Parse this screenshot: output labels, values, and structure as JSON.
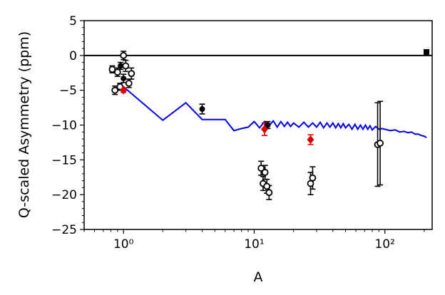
{
  "chart_data": {
    "type": "scatter",
    "title": "",
    "xlabel": "A",
    "ylabel": "Q-scaled Asymmetry (ppm)",
    "x_scale": "log",
    "xlim": [
      0.5,
      230
    ],
    "ylim": [
      -25,
      5
    ],
    "x_ticks": [
      {
        "value": 1,
        "label": "10⁰"
      },
      {
        "value": 10,
        "label": "10¹"
      },
      {
        "value": 100,
        "label": "10²"
      }
    ],
    "y_ticks": [
      {
        "value": 5,
        "label": "5"
      },
      {
        "value": 0,
        "label": "0"
      },
      {
        "value": -5,
        "label": "−5"
      },
      {
        "value": -10,
        "label": "−10"
      },
      {
        "value": -15,
        "label": "−15"
      },
      {
        "value": -20,
        "label": "−20"
      },
      {
        "value": -25,
        "label": "−25"
      }
    ],
    "reference_line": 0,
    "colors": {
      "model": "#0000ee",
      "open": "#000000",
      "filled": "#000000",
      "diamond": "#dd0000"
    },
    "series": [
      {
        "marker": "open-circle",
        "points": [
          {
            "x": 0.82,
            "y": -2.0,
            "err": 0.5
          },
          {
            "x": 0.86,
            "y": -5.0,
            "err": 0.6
          },
          {
            "x": 0.9,
            "y": -2.4,
            "err": 0.6
          },
          {
            "x": 0.94,
            "y": -4.5,
            "err": 0.5
          },
          {
            "x": 1.0,
            "y": 0.0,
            "err": 0.6
          },
          {
            "x": 1.04,
            "y": -1.5,
            "err": 0.8
          },
          {
            "x": 1.1,
            "y": -4.0,
            "err": 0.6
          },
          {
            "x": 1.15,
            "y": -2.6,
            "err": 0.8
          },
          {
            "x": 11.3,
            "y": -16.2,
            "err": 1.0
          },
          {
            "x": 11.7,
            "y": -18.4,
            "err": 1.0
          },
          {
            "x": 12.1,
            "y": -16.8,
            "err": 1.0
          },
          {
            "x": 12.5,
            "y": -18.8,
            "err": 1.0
          },
          {
            "x": 13.0,
            "y": -19.7,
            "err": 1.0
          },
          {
            "x": 27.0,
            "y": -18.4,
            "err": 1.6
          },
          {
            "x": 28.0,
            "y": -17.6,
            "err": 1.6
          },
          {
            "x": 88.0,
            "y": -12.8,
            "err": 6.0
          },
          {
            "x": 92.0,
            "y": -12.6,
            "err": 6.0
          }
        ]
      },
      {
        "marker": "filled-circle",
        "points": [
          {
            "x": 0.95,
            "y": -1.5,
            "err": 0.5
          },
          {
            "x": 1.0,
            "y": -3.3,
            "err": 0.6
          },
          {
            "x": 4.0,
            "y": -7.7,
            "err": 0.7
          },
          {
            "x": 12.7,
            "y": -10.0,
            "err": 0.5
          }
        ]
      },
      {
        "marker": "filled-square",
        "points": [
          {
            "x": 208,
            "y": 0.5,
            "err": 0
          }
        ]
      },
      {
        "marker": "diamond",
        "points": [
          {
            "x": 1.0,
            "y": -5.0,
            "err": 0.3
          },
          {
            "x": 12.0,
            "y": -10.6,
            "err": 0.9
          },
          {
            "x": 27.0,
            "y": -12.1,
            "err": 0.7
          }
        ]
      }
    ],
    "model_line": {
      "x": [
        1,
        2,
        3,
        4,
        6,
        7,
        8,
        9,
        10,
        11,
        12,
        13,
        14,
        15,
        16,
        17,
        18,
        19,
        20,
        22,
        24,
        26,
        28,
        30,
        32,
        34,
        36,
        38,
        40,
        42,
        44,
        46,
        48,
        50,
        53,
        56,
        59,
        62,
        65,
        68,
        71,
        74,
        77,
        80,
        85,
        90,
        95,
        100,
        110,
        120,
        130,
        140,
        150,
        160,
        170,
        180,
        190,
        200,
        208
      ],
      "y": [
        -4.5,
        -9.3,
        -6.8,
        -9.2,
        -9.2,
        -10.8,
        -10.5,
        -10.3,
        -9.5,
        -10.4,
        -9.5,
        -10.1,
        -9.4,
        -10.3,
        -9.5,
        -10.2,
        -9.6,
        -10.2,
        -9.7,
        -10.3,
        -9.6,
        -10.3,
        -9.7,
        -10.3,
        -9.6,
        -10.4,
        -9.7,
        -10.3,
        -9.7,
        -10.4,
        -9.8,
        -10.4,
        -9.8,
        -10.4,
        -9.9,
        -10.6,
        -9.9,
        -10.6,
        -10.0,
        -10.6,
        -10.0,
        -10.6,
        -10.1,
        -10.7,
        -10.2,
        -10.6,
        -10.5,
        -10.6,
        -10.8,
        -10.7,
        -11.0,
        -10.9,
        -11.1,
        -11.0,
        -11.3,
        -11.3,
        -11.5,
        -11.6,
        -11.8
      ]
    }
  }
}
